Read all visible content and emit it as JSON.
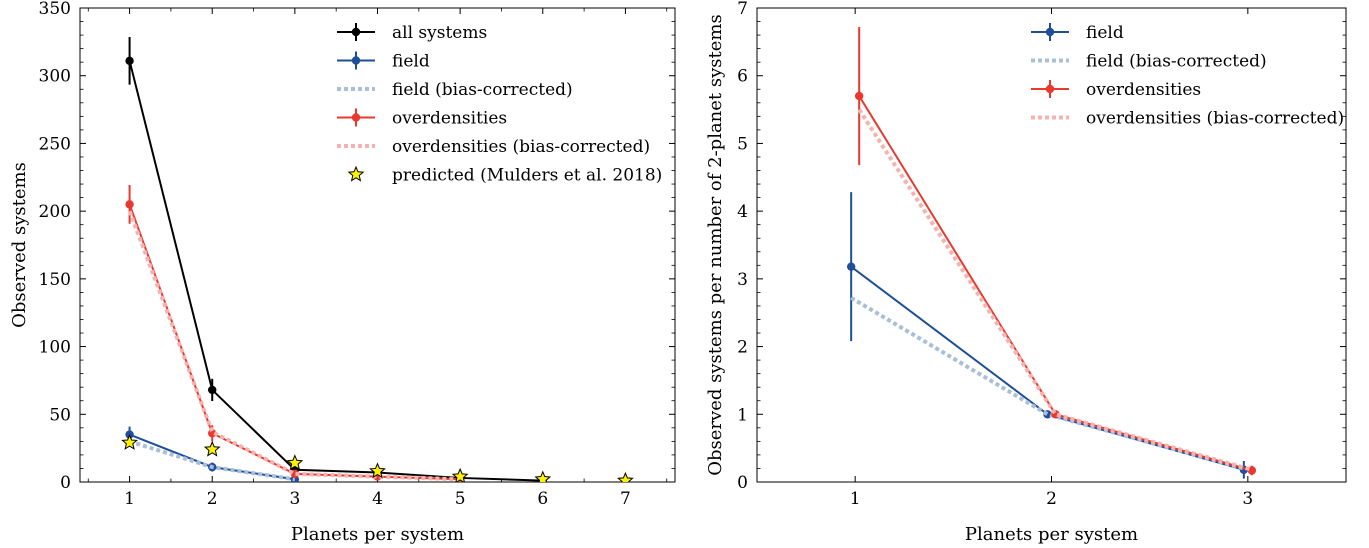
{
  "chart_data": [
    {
      "type": "line",
      "title": "",
      "xlabel": "Planets per system",
      "ylabel": "Observed systems",
      "xlim": [
        0.4,
        7.6
      ],
      "ylim": [
        0,
        350
      ],
      "xticks": [
        1,
        2,
        3,
        4,
        5,
        6,
        7
      ],
      "yticks": [
        0,
        50,
        100,
        150,
        200,
        250,
        300,
        350
      ],
      "legend_position": "top-right",
      "series": [
        {
          "name": "all systems",
          "color": "#000000",
          "style": "solid-errorbar",
          "x": [
            1,
            2,
            3,
            4,
            5,
            6
          ],
          "values": [
            311,
            68,
            9,
            7,
            3,
            1
          ],
          "errors": [
            17.6,
            8.2,
            3,
            2.6,
            1.7,
            1
          ]
        },
        {
          "name": "field",
          "color": "#1f4e9a",
          "style": "solid-errorbar",
          "x": [
            1,
            2,
            3
          ],
          "values": [
            35,
            11,
            2
          ],
          "errors": [
            5.9,
            3.3,
            1.4
          ]
        },
        {
          "name": "field (bias-corrected)",
          "color": "#a9bfd8",
          "style": "dashed",
          "x": [
            1,
            2,
            3
          ],
          "values": [
            30,
            11,
            2
          ],
          "errors": []
        },
        {
          "name": "overdensities",
          "color": "#e8392f",
          "style": "solid-errorbar",
          "x": [
            1,
            2,
            3,
            4,
            5
          ],
          "values": [
            205,
            36,
            6,
            4,
            2
          ],
          "errors": [
            14.3,
            6,
            2.4,
            2,
            1.4
          ]
        },
        {
          "name": "overdensities (bias-corrected)",
          "color": "#f4b3b0",
          "style": "dashed",
          "x": [
            1,
            2,
            3,
            4,
            5
          ],
          "values": [
            200,
            37,
            6,
            4,
            2
          ],
          "errors": []
        },
        {
          "name": "predicted (Mulders et al. 2018)",
          "color": "#fff200",
          "style": "star-marker",
          "x": [
            1,
            2,
            3,
            4,
            5,
            6,
            7
          ],
          "values": [
            29,
            24,
            14,
            8,
            4,
            2,
            1
          ],
          "errors": []
        }
      ]
    },
    {
      "type": "line",
      "title": "",
      "xlabel": "Planets per system",
      "ylabel": "Observed systems per number of 2-planet systems",
      "xlim": [
        0.5,
        3.5
      ],
      "ylim": [
        0,
        7
      ],
      "xticks": [
        1,
        2,
        3
      ],
      "yticks": [
        0,
        1,
        2,
        3,
        4,
        5,
        6,
        7
      ],
      "legend_position": "top-right",
      "series": [
        {
          "name": "field",
          "color": "#1f4e9a",
          "style": "solid-errorbar",
          "x": [
            1,
            2,
            3
          ],
          "values": [
            3.18,
            1.0,
            0.18
          ],
          "errors": [
            1.1,
            0,
            0.13
          ]
        },
        {
          "name": "field (bias-corrected)",
          "color": "#a9bfd8",
          "style": "dashed",
          "x": [
            1,
            2,
            3
          ],
          "values": [
            2.72,
            1.0,
            0.2
          ],
          "errors": []
        },
        {
          "name": "overdensities",
          "color": "#e8392f",
          "style": "solid-errorbar",
          "x": [
            1,
            2,
            3
          ],
          "values": [
            5.7,
            1.0,
            0.17
          ],
          "errors": [
            1.02,
            0,
            0.07
          ]
        },
        {
          "name": "overdensities (bias-corrected)",
          "color": "#f4b3b0",
          "style": "dashed",
          "x": [
            1,
            2,
            3
          ],
          "values": [
            5.5,
            1.0,
            0.18
          ],
          "errors": []
        }
      ]
    }
  ]
}
